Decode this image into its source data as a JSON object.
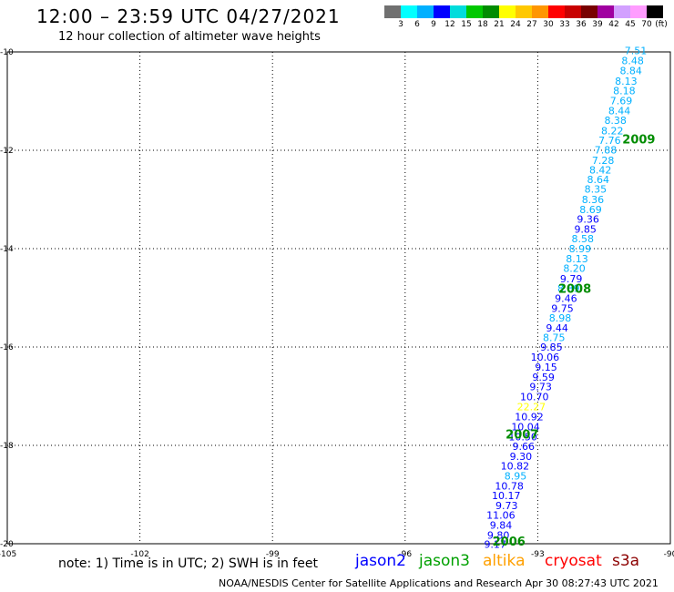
{
  "header": {
    "title": "12:00 – 23:59 UTC 04/27/2021",
    "subtitle": "12 hour collection of altimeter wave heights"
  },
  "colorbar": {
    "colors": [
      "#707070",
      "#00ffff",
      "#00b0ff",
      "#0000ff",
      "#00dcdc",
      "#00c800",
      "#008c00",
      "#ffff00",
      "#ffc800",
      "#ff9600",
      "#ff0000",
      "#c80000",
      "#780000",
      "#a000a0",
      "#d2a0ff",
      "#ff9cff",
      "#000000"
    ],
    "labels": [
      "3",
      "6",
      "9",
      "12",
      "15",
      "18",
      "21",
      "24",
      "27",
      "30",
      "33",
      "36",
      "39",
      "42",
      "45",
      "70"
    ],
    "unit_label": "(ft)"
  },
  "map": {
    "lon_ticks": [
      "-105",
      "-102",
      "-99",
      "-96",
      "-93",
      "-90"
    ],
    "lat_ticks": [
      "-10",
      "-12",
      "-14",
      "-16",
      "-18",
      "-20"
    ],
    "lon_range": [
      -105,
      -90
    ],
    "lat_range": [
      -20,
      -10
    ],
    "grid": "dotted",
    "track": [
      {
        "lon": -90.53,
        "lat": -9.97,
        "swh": "7.51",
        "color": "#00b0ff"
      },
      {
        "lon": -90.6,
        "lat": -10.18,
        "swh": "8.48",
        "color": "#00b0ff"
      },
      {
        "lon": -90.64,
        "lat": -10.38,
        "swh": "8.84",
        "color": "#00b0ff"
      },
      {
        "lon": -90.75,
        "lat": -10.59,
        "swh": "8.13",
        "color": "#00b0ff"
      },
      {
        "lon": -90.79,
        "lat": -10.79,
        "swh": "8.18",
        "color": "#00b0ff"
      },
      {
        "lon": -90.86,
        "lat": -10.99,
        "swh": "7.69",
        "color": "#00b0ff"
      },
      {
        "lon": -90.9,
        "lat": -11.19,
        "swh": "8.44",
        "color": "#00b0ff"
      },
      {
        "lon": -90.99,
        "lat": -11.39,
        "swh": "8.38",
        "color": "#00b0ff"
      },
      {
        "lon": -91.06,
        "lat": -11.6,
        "swh": "8.22",
        "color": "#00b0ff"
      },
      {
        "lon": -91.12,
        "lat": -11.8,
        "swh": "7.76",
        "color": "#00b0ff"
      },
      {
        "lon": -91.21,
        "lat": -11.99,
        "swh": "7.88",
        "color": "#00b0ff"
      },
      {
        "lon": -91.27,
        "lat": -12.2,
        "swh": "7.28",
        "color": "#00b0ff"
      },
      {
        "lon": -91.33,
        "lat": -12.4,
        "swh": "8.42",
        "color": "#00b0ff"
      },
      {
        "lon": -91.38,
        "lat": -12.59,
        "swh": "8.64",
        "color": "#00b0ff"
      },
      {
        "lon": -91.44,
        "lat": -12.79,
        "swh": "8.35",
        "color": "#00b0ff"
      },
      {
        "lon": -91.5,
        "lat": -13.0,
        "swh": "8.36",
        "color": "#00b0ff"
      },
      {
        "lon": -91.55,
        "lat": -13.2,
        "swh": "8.69",
        "color": "#00b0ff"
      },
      {
        "lon": -91.61,
        "lat": -13.4,
        "swh": "9.36",
        "color": "#0000ff"
      },
      {
        "lon": -91.67,
        "lat": -13.6,
        "swh": "9.85",
        "color": "#0000ff"
      },
      {
        "lon": -91.73,
        "lat": -13.8,
        "swh": "8.58",
        "color": "#00b0ff"
      },
      {
        "lon": -91.79,
        "lat": -14.0,
        "swh": "8.99",
        "color": "#00b0ff"
      },
      {
        "lon": -91.86,
        "lat": -14.2,
        "swh": "8.13",
        "color": "#00b0ff"
      },
      {
        "lon": -91.92,
        "lat": -14.4,
        "swh": "8.20",
        "color": "#00b0ff"
      },
      {
        "lon": -91.99,
        "lat": -14.61,
        "swh": "9.79",
        "color": "#0000ff"
      },
      {
        "lon": -92.05,
        "lat": -14.81,
        "swh": "8.89",
        "color": "#00b0ff"
      },
      {
        "lon": -92.11,
        "lat": -15.01,
        "swh": "9.46",
        "color": "#0000ff"
      },
      {
        "lon": -92.19,
        "lat": -15.21,
        "swh": "9.75",
        "color": "#0000ff"
      },
      {
        "lon": -92.24,
        "lat": -15.41,
        "swh": "8.98",
        "color": "#00b0ff"
      },
      {
        "lon": -92.31,
        "lat": -15.61,
        "swh": "9.44",
        "color": "#0000ff"
      },
      {
        "lon": -92.38,
        "lat": -15.81,
        "swh": "8.75",
        "color": "#00b0ff"
      },
      {
        "lon": -92.44,
        "lat": -16.0,
        "swh": "9.85",
        "color": "#0000ff"
      },
      {
        "lon": -92.51,
        "lat": -16.2,
        "swh": "10.06",
        "color": "#0000ff"
      },
      {
        "lon": -92.56,
        "lat": -16.41,
        "swh": "9.15",
        "color": "#0000ff"
      },
      {
        "lon": -92.62,
        "lat": -16.61,
        "swh": "9.59",
        "color": "#0000ff"
      },
      {
        "lon": -92.68,
        "lat": -16.81,
        "swh": "9.73",
        "color": "#0000ff"
      },
      {
        "lon": -92.75,
        "lat": -17.01,
        "swh": "10.70",
        "color": "#0000ff"
      },
      {
        "lon": -92.82,
        "lat": -17.21,
        "swh": "22.27",
        "color": "#ffff00"
      },
      {
        "lon": -92.87,
        "lat": -17.42,
        "swh": "10.92",
        "color": "#0000ff"
      },
      {
        "lon": -92.95,
        "lat": -17.62,
        "swh": "10.04",
        "color": "#0000ff"
      },
      {
        "lon": -93.01,
        "lat": -17.82,
        "swh": "10.50",
        "color": "#0000ff"
      },
      {
        "lon": -93.07,
        "lat": -18.02,
        "swh": "9.66",
        "color": "#0000ff"
      },
      {
        "lon": -93.13,
        "lat": -18.22,
        "swh": "9.30",
        "color": "#0000ff"
      },
      {
        "lon": -93.19,
        "lat": -18.42,
        "swh": "10.82",
        "color": "#0000ff"
      },
      {
        "lon": -93.25,
        "lat": -18.62,
        "swh": "8.95",
        "color": "#00b0ff"
      },
      {
        "lon": -93.32,
        "lat": -18.82,
        "swh": "10.78",
        "color": "#0000ff"
      },
      {
        "lon": -93.39,
        "lat": -19.02,
        "swh": "10.17",
        "color": "#0000ff"
      },
      {
        "lon": -93.45,
        "lat": -19.22,
        "swh": "9.73",
        "color": "#0000ff"
      },
      {
        "lon": -93.51,
        "lat": -19.42,
        "swh": "11.06",
        "color": "#0000ff"
      },
      {
        "lon": -93.58,
        "lat": -19.62,
        "swh": "9.84",
        "color": "#0000ff"
      },
      {
        "lon": -93.64,
        "lat": -19.82,
        "swh": "9.80",
        "color": "#0000ff"
      },
      {
        "lon": -93.71,
        "lat": -20.01,
        "swh": "9.17",
        "color": "#0000ff"
      }
    ],
    "time_labels": [
      {
        "lon": -90.34,
        "lat": -11.77,
        "text": "2009"
      },
      {
        "lon": -91.79,
        "lat": -14.81,
        "text": "2008"
      },
      {
        "lon": -92.98,
        "lat": -17.77,
        "text": "2007"
      },
      {
        "lon": -93.28,
        "lat": -19.94,
        "text": "2006"
      }
    ],
    "label_color": "#008c00"
  },
  "note": "note: 1) Time is in UTC; 2) SWH is in feet",
  "legend": [
    {
      "text": "jason2",
      "color": "#0000ff"
    },
    {
      "text": "jason3",
      "color": "#00a000"
    },
    {
      "text": "altika",
      "color": "#ffa000"
    },
    {
      "text": "cryosat",
      "color": "#ff0000"
    },
    {
      "text": "s3a",
      "color": "#8c0000"
    }
  ],
  "credit": "NOAA/NESDIS Center for Satellite Applications and Research   Apr 30 08:27:43 UTC 2021"
}
